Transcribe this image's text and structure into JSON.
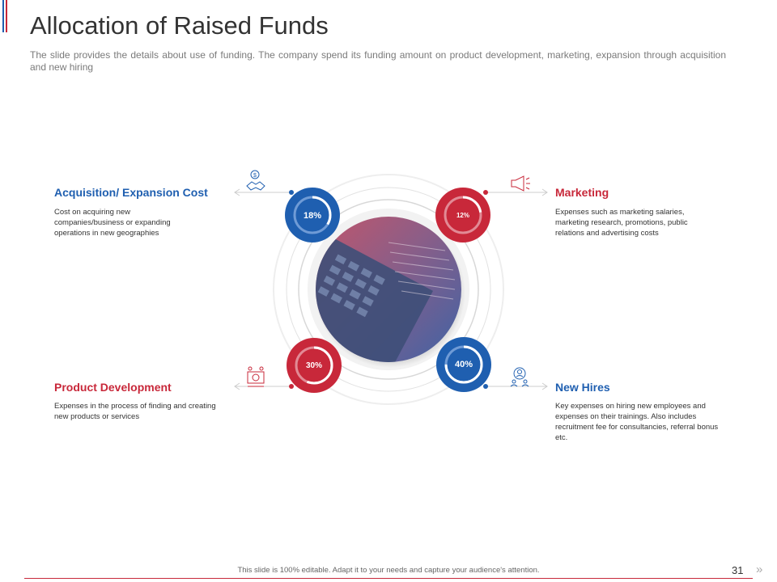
{
  "slide": {
    "title": "Allocation of Raised Funds",
    "subtitle": "The slide provides the details about use of funding. The company spend its funding amount on product development, marketing, expansion through acquisition and new hiring"
  },
  "items": [
    {
      "title": "Acquisition/ Expansion Cost",
      "description": "Cost on acquiring new companies/business or expanding operations in new geographies",
      "percent_label": "18%",
      "percent": 18,
      "color": "#1f5fb0",
      "icon": "handshake-dollar-icon"
    },
    {
      "title": "Marketing",
      "description": "Expenses such as marketing salaries, marketing research, promotions, public relations and advertising costs",
      "percent_label": "12%",
      "percent": 12,
      "color": "#c8283a",
      "icon": "megaphone-icon"
    },
    {
      "title": "Product Development",
      "description": "Expenses in the process of finding and creating new products or services",
      "percent_label": "30%",
      "percent": 30,
      "color": "#c8283a",
      "icon": "product-gear-icon"
    },
    {
      "title": "New Hires",
      "description": "Key expenses on hiring new employees and expenses on their trainings. Also includes recruitment fee for consultancies, referral bonus etc.",
      "percent_label": "40%",
      "percent": 40,
      "color": "#1f5fb0",
      "icon": "people-search-icon"
    }
  ],
  "footer": {
    "text": "This slide is 100% editable. Adapt it to your needs and capture your audience's attention.",
    "page_number": "31",
    "next_icon": "»"
  },
  "colors": {
    "blue": "#1f5fb0",
    "red": "#c8283a"
  }
}
